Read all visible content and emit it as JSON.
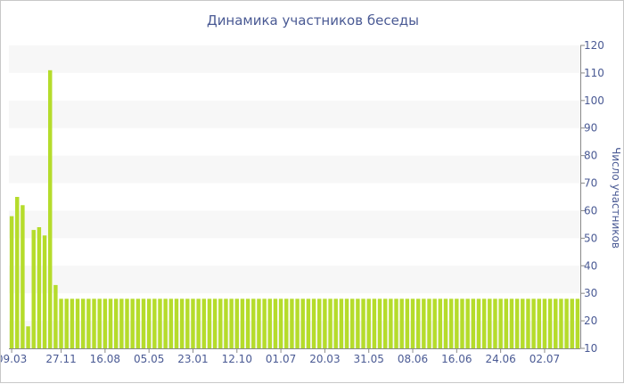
{
  "chart_data": {
    "type": "bar",
    "title": "Динамика участников беседы",
    "ylabel": "Число участников",
    "xlabel": "",
    "ylim": [
      10,
      120
    ],
    "yticks": [
      10,
      20,
      30,
      40,
      50,
      60,
      70,
      80,
      90,
      100,
      110,
      120
    ],
    "xtick_labels": [
      "09.03",
      "27.11",
      "16.08",
      "05.05",
      "23.01",
      "12.10",
      "01.07",
      "20.03",
      "31.05",
      "08.06",
      "16.06",
      "24.06",
      "02.07"
    ],
    "xtick_bar_index": [
      0,
      9,
      17,
      25,
      33,
      41,
      49,
      57,
      65,
      73,
      81,
      89,
      97
    ],
    "values": [
      58,
      65,
      62,
      18,
      53,
      54,
      51,
      111,
      33,
      28,
      28,
      28,
      28,
      28,
      28,
      28,
      28,
      28,
      28,
      28,
      28,
      28,
      28,
      28,
      28,
      28,
      28,
      28,
      28,
      28,
      28,
      28,
      28,
      28,
      28,
      28,
      28,
      28,
      28,
      28,
      28,
      28,
      28,
      28,
      28,
      28,
      28,
      28,
      28,
      28,
      28,
      28,
      28,
      28,
      28,
      28,
      28,
      28,
      28,
      28,
      28,
      28,
      28,
      28,
      28,
      28,
      28,
      28,
      28,
      28,
      28,
      28,
      28,
      28,
      28,
      28,
      28,
      28,
      28,
      28,
      28,
      28,
      28,
      28,
      28,
      28,
      28,
      28,
      28,
      28,
      28,
      28,
      28,
      28,
      28,
      28,
      28,
      28,
      28,
      28,
      28,
      28,
      28,
      28
    ],
    "grid": true,
    "y_axis_position": "right",
    "bar_color": "#b5dc2b",
    "band_color": "#f7f7f7"
  }
}
